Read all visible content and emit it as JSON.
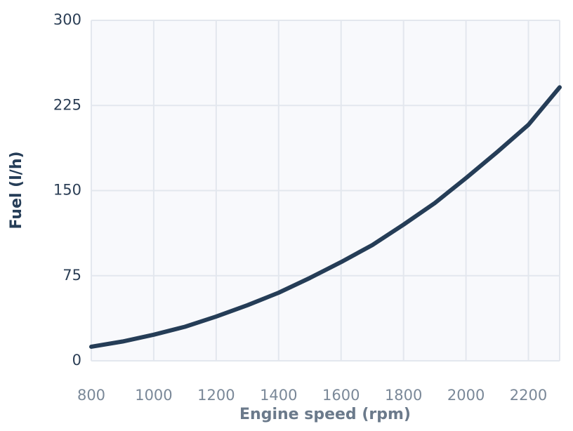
{
  "chart_data": {
    "type": "line",
    "x_label": "Engine speed (rpm)",
    "y_label": "Fuel (l/h)",
    "x": [
      800,
      900,
      1000,
      1100,
      1200,
      1300,
      1400,
      1500,
      1600,
      1700,
      1800,
      1900,
      2000,
      2100,
      2200,
      2300
    ],
    "series": [
      {
        "name": "Fuel",
        "color": "#253d57",
        "values": [
          12.4,
          17,
          23,
          30,
          39,
          49,
          60,
          73,
          87,
          102,
          120,
          139,
          161,
          184,
          208,
          241
        ]
      }
    ],
    "xlim": [
      800,
      2300
    ],
    "xticks": [
      800,
      1000,
      1200,
      1400,
      1600,
      1800,
      2000,
      2200
    ],
    "ylim": [
      0,
      300
    ],
    "yticks": [
      0,
      75,
      150,
      225,
      300
    ],
    "grid": true
  }
}
